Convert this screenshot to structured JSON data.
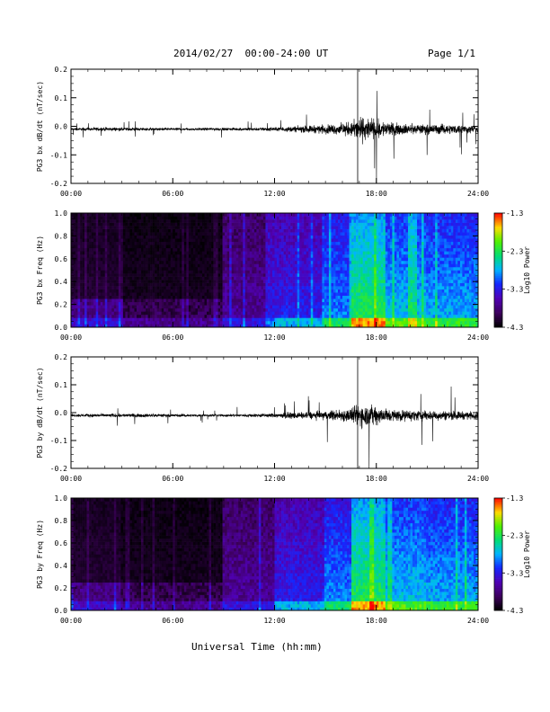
{
  "header": {
    "date_range": "2014/02/27  00:00-24:00 UT",
    "page": "Page 1/1"
  },
  "x_axis_title": "Universal Time (hh:mm)",
  "colors": {
    "trace": "#000000",
    "background": "#ffffff"
  },
  "chart_data": [
    {
      "type": "line",
      "ylabel": "PG3 bx dB/dt (nT/sec)",
      "x_ticks": [
        "00:00",
        "06:00",
        "12:00",
        "18:00",
        "24:00"
      ],
      "y_ticks": [
        "0.2",
        "0.1",
        "0.0",
        "-0.1",
        "-0.2"
      ],
      "xlim": [
        0,
        24
      ],
      "ylim": [
        -0.2,
        0.2
      ],
      "series": [
        {
          "x": [
            0,
            2,
            4,
            6,
            8,
            10,
            12,
            14,
            15.5,
            16.5,
            17,
            17.5,
            18,
            19,
            20,
            22,
            24
          ],
          "amplitude": [
            0.01,
            0.015,
            0.012,
            0.01,
            0.01,
            0.012,
            0.015,
            0.03,
            0.04,
            0.06,
            0.1,
            0.09,
            0.08,
            0.05,
            0.04,
            0.04,
            0.03
          ]
        }
      ]
    },
    {
      "type": "heatmap",
      "ylabel": "PG3 bx Freq (Hz)",
      "x_ticks": [
        "00:00",
        "06:00",
        "12:00",
        "18:00",
        "24:00"
      ],
      "y_ticks": [
        "1.0",
        "0.8",
        "0.6",
        "0.4",
        "0.2",
        "0.0"
      ],
      "xlim": [
        0,
        24
      ],
      "ylim": [
        0,
        1
      ],
      "colorbar": {
        "label": "Log10 Power",
        "ticks": [
          "-1.3",
          "-2.3",
          "-3.3",
          "-4.3"
        ],
        "range": [
          -4.3,
          -1.3
        ]
      }
    },
    {
      "type": "line",
      "ylabel": "PG3 by dB/dt (nT/sec)",
      "x_ticks": [
        "00:00",
        "06:00",
        "12:00",
        "18:00",
        "24:00"
      ],
      "y_ticks": [
        "0.2",
        "0.1",
        "0.0",
        "-0.1",
        "-0.2"
      ],
      "xlim": [
        0,
        24
      ],
      "ylim": [
        -0.2,
        0.2
      ],
      "series": [
        {
          "x": [
            0,
            2,
            4,
            6,
            8,
            10,
            12,
            14,
            15.5,
            16.5,
            17,
            17.5,
            18,
            19,
            20,
            22,
            24
          ],
          "amplitude": [
            0.012,
            0.015,
            0.015,
            0.012,
            0.01,
            0.012,
            0.018,
            0.03,
            0.045,
            0.06,
            0.1,
            0.09,
            0.08,
            0.05,
            0.045,
            0.04,
            0.03
          ]
        }
      ]
    },
    {
      "type": "heatmap",
      "ylabel": "PG3 by Freq (Hz)",
      "x_ticks": [
        "00:00",
        "06:00",
        "12:00",
        "18:00",
        "24:00"
      ],
      "y_ticks": [
        "1.0",
        "0.8",
        "0.6",
        "0.4",
        "0.2",
        "0.0"
      ],
      "xlim": [
        0,
        24
      ],
      "ylim": [
        0,
        1
      ],
      "colorbar": {
        "label": "Log10 Power",
        "ticks": [
          "-1.3",
          "-2.3",
          "-3.3",
          "-4.3"
        ],
        "range": [
          -4.3,
          -1.3
        ]
      }
    }
  ]
}
